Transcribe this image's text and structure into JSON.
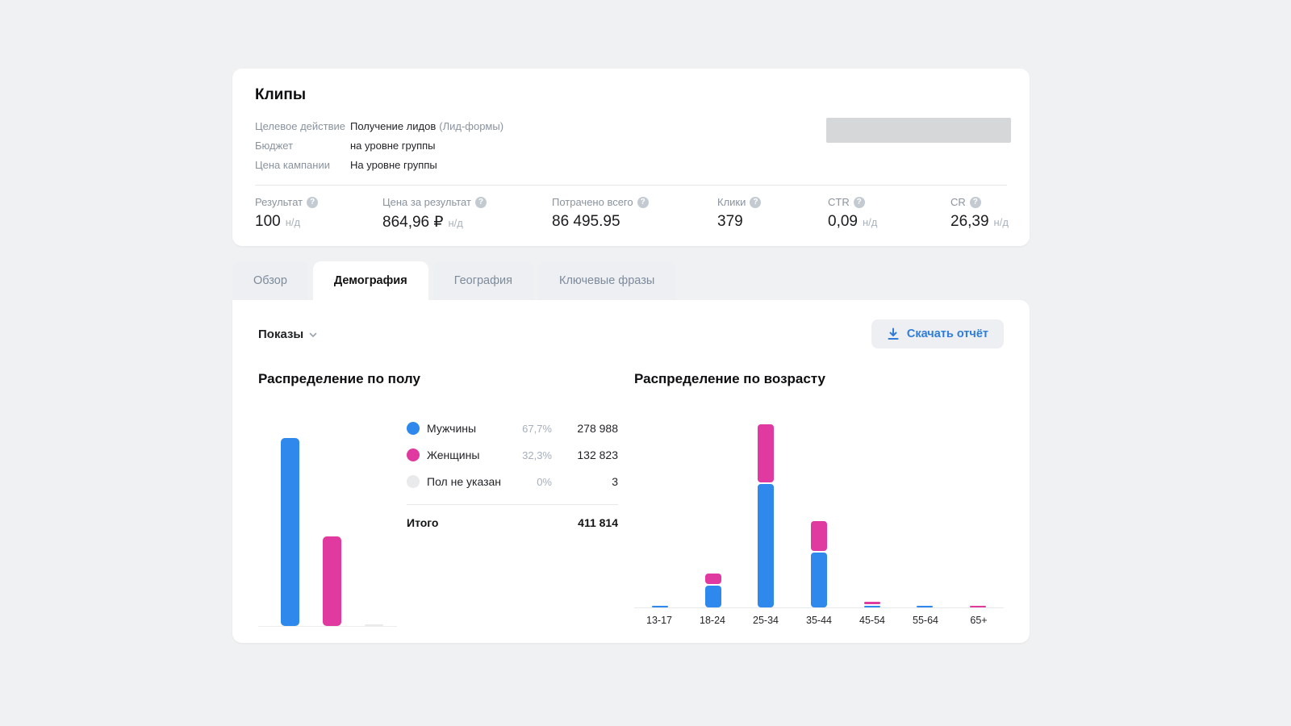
{
  "header": {
    "title": "Клипы",
    "info_rows": [
      {
        "label": "Целевое действие",
        "value": "Получение лидов",
        "suffix": "(Лид-формы)"
      },
      {
        "label": "Бюджет",
        "value": "на уровне группы",
        "suffix": ""
      },
      {
        "label": "Цена кампании",
        "value": "На уровне группы",
        "suffix": ""
      }
    ],
    "stats": [
      {
        "label": "Результат",
        "value": "100",
        "suffix": "н/д"
      },
      {
        "label": "Цена за результат",
        "value": "864,96 ₽",
        "suffix": "н/д"
      },
      {
        "label": "Потрачено всего",
        "value": "86 495.95",
        "suffix": ""
      },
      {
        "label": "Клики",
        "value": "379",
        "suffix": ""
      },
      {
        "label": "CTR",
        "value": "0,09",
        "suffix": "н/д"
      },
      {
        "label": "CR",
        "value": "26,39",
        "suffix": "н/д"
      }
    ],
    "help_glyph": "?"
  },
  "tabs": [
    {
      "label": "Обзор"
    },
    {
      "label": "Демография"
    },
    {
      "label": "География"
    },
    {
      "label": "Ключевые фразы"
    }
  ],
  "toolbar": {
    "metric_selector": "Показы",
    "download_button": "Скачать отчёт"
  },
  "colors": {
    "male": "#2f88ec",
    "female": "#e0399f",
    "unspecified": "#e9eaec",
    "accent_blue": "#2f7cd9"
  },
  "chart_data": [
    {
      "type": "bar",
      "title": "Распределение по полу",
      "categories": [
        "Мужчины",
        "Женщины",
        "Пол не указан"
      ],
      "values_pct": [
        67.7,
        32.3,
        0
      ],
      "values_count": [
        278988,
        132823,
        3
      ],
      "legend": [
        {
          "label": "Мужчины",
          "percent": "67,7%",
          "count": "278 988",
          "color_key": "male"
        },
        {
          "label": "Женщины",
          "percent": "32,3%",
          "count": "132 823",
          "color_key": "female"
        },
        {
          "label": "Пол не указан",
          "percent": "0%",
          "count": "3",
          "color_key": "unspecified"
        }
      ],
      "total_label": "Итого",
      "total_value": "411 814",
      "axis_labels": "none",
      "grid": false
    },
    {
      "type": "stacked-bar",
      "title": "Распределение по возрасту",
      "categories": [
        "13-17",
        "18-24",
        "25-34",
        "35-44",
        "45-54",
        "55-64",
        "65+"
      ],
      "series": [
        {
          "name": "Мужчины",
          "color_key": "male",
          "values_pct_est": [
            0.5,
            7.1,
            40.2,
            17.9,
            0.6,
            0.5,
            0
          ]
        },
        {
          "name": "Женщины",
          "color_key": "female",
          "values_pct_est": [
            0,
            3.4,
            18.9,
            9.7,
            0.8,
            0,
            0.5
          ]
        }
      ],
      "ylabel": "",
      "xlabel": "",
      "legend_position": "none",
      "grid": false
    }
  ]
}
